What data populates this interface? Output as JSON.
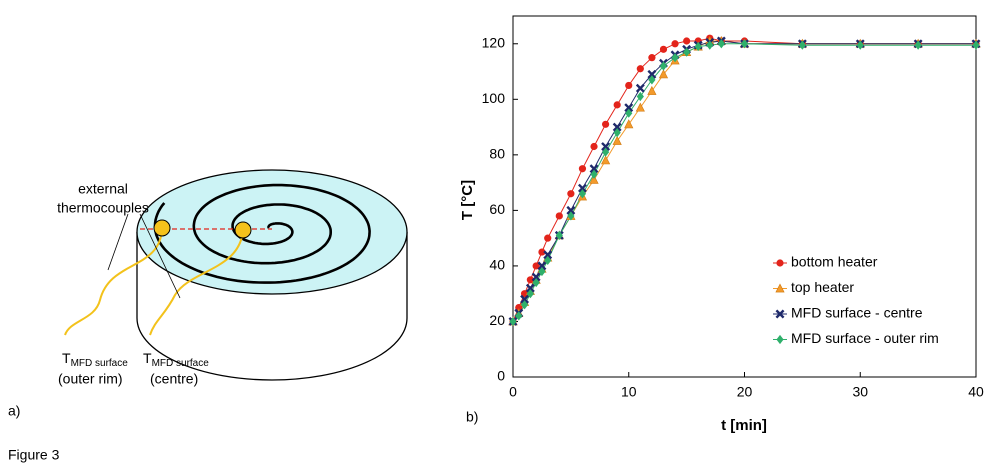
{
  "diagram": {
    "external_label": [
      "external",
      "thermocouples"
    ],
    "sensors": [
      {
        "symbol": "T",
        "subscript": "MFD surface",
        "note": "(outer rim)"
      },
      {
        "symbol": "T",
        "subscript": "MFD surface",
        "note": "(centre)"
      }
    ]
  },
  "panel_labels": [
    "a)",
    "b)"
  ],
  "figure_label": "Figure 3",
  "chart_data": {
    "type": "line",
    "xlabel": "t [min]",
    "ylabel": "T [°C]",
    "x": [
      0,
      0.5,
      1,
      1.5,
      2,
      2.5,
      3,
      4,
      5,
      6,
      7,
      8,
      9,
      10,
      11,
      12,
      13,
      14,
      15,
      16,
      17,
      18,
      20,
      25,
      30,
      35,
      40
    ],
    "series": [
      {
        "name": "bottom heater",
        "color": "#e3241b",
        "marker": "circle",
        "values": [
          20,
          25,
          30,
          35,
          40,
          45,
          50,
          58,
          66,
          75,
          83,
          91,
          98,
          105,
          111,
          115,
          118,
          120,
          121,
          121,
          122,
          121,
          121,
          120,
          120,
          120,
          120
        ]
      },
      {
        "name": "top heater",
        "color": "#f39a2b",
        "marker": "triangle",
        "values": [
          20,
          23,
          27,
          31,
          35,
          39,
          43,
          51,
          58,
          65,
          71,
          78,
          85,
          91,
          97,
          103,
          109,
          114,
          117,
          119,
          121,
          121,
          120,
          120,
          120,
          120,
          120
        ]
      },
      {
        "name": "MFD surface - centre",
        "color": "#1f2a6b",
        "marker": "x",
        "values": [
          20,
          23,
          28,
          32,
          36,
          40,
          44,
          51,
          60,
          68,
          75,
          83,
          90,
          97,
          104,
          109,
          113,
          116,
          118,
          119.5,
          120.5,
          121,
          120,
          120,
          120,
          120,
          120
        ]
      },
      {
        "name": "MFD surface - outer rim",
        "color": "#2fb06b",
        "marker": "diamond",
        "values": [
          20,
          22,
          26,
          30,
          34,
          38,
          42,
          51,
          58,
          66,
          73,
          81,
          88,
          95,
          101,
          107,
          112,
          115,
          117,
          119,
          119.5,
          120,
          120,
          119.5,
          119.5,
          119.5,
          119.5
        ]
      }
    ],
    "xlim": [
      0,
      40
    ],
    "xticks": [
      0,
      10,
      20,
      30,
      40
    ],
    "ylim": [
      0,
      130
    ],
    "yticks": [
      0,
      20,
      40,
      60,
      80,
      100,
      120
    ],
    "grid": false,
    "legend": "right"
  }
}
